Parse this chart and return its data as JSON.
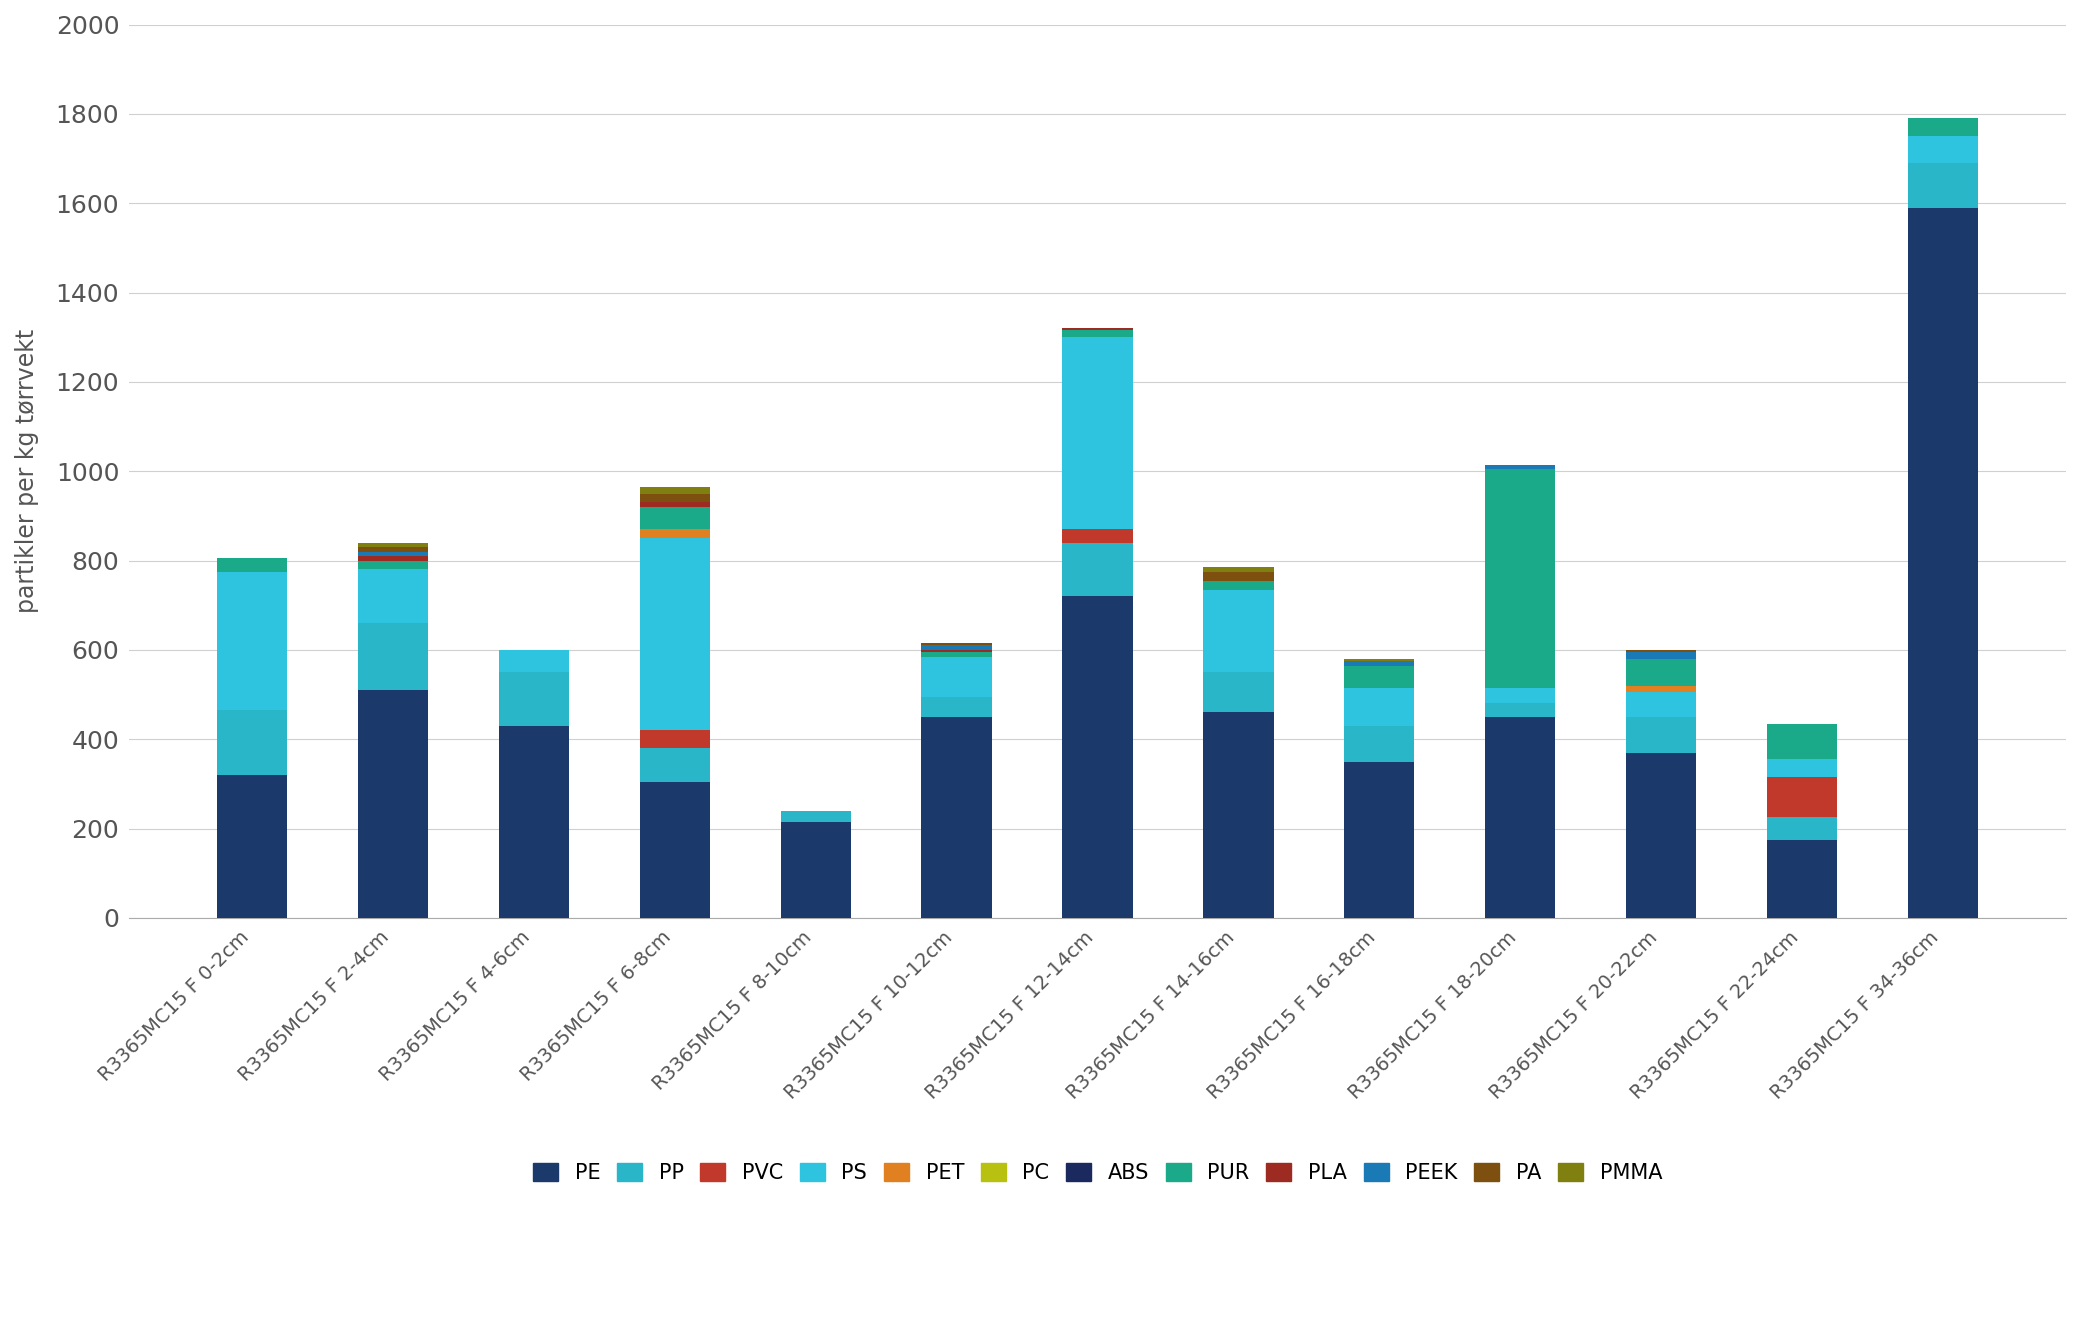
{
  "categories": [
    "R3365MC15 F 0-2cm",
    "R3365MC15 F 2-4cm",
    "R3365MC15 F 4-6cm",
    "R3365MC15 F 6-8cm",
    "R3365MC15 F 8-10cm",
    "R3365MC15 F 10-12cm",
    "R3365MC15 F 12-14cm",
    "R3365MC15 F 14-16cm",
    "R3365MC15 F 16-18cm",
    "R3365MC15 F 18-20cm",
    "R3365MC15 F 20-22cm",
    "R3365MC15 F 22-24cm",
    "R3365MC15 F 34-36cm"
  ],
  "series": {
    "PE": [
      320,
      510,
      430,
      305,
      215,
      450,
      720,
      460,
      350,
      450,
      370,
      175,
      1590
    ],
    "PP": [
      145,
      150,
      120,
      75,
      25,
      45,
      120,
      90,
      80,
      30,
      80,
      50,
      100
    ],
    "PVC": [
      0,
      0,
      0,
      40,
      0,
      0,
      30,
      0,
      0,
      0,
      0,
      90,
      0
    ],
    "PS": [
      310,
      120,
      50,
      430,
      0,
      90,
      430,
      185,
      85,
      35,
      55,
      40,
      60
    ],
    "PET": [
      0,
      0,
      0,
      20,
      0,
      0,
      0,
      0,
      0,
      0,
      15,
      0,
      0
    ],
    "PC": [
      0,
      0,
      0,
      0,
      0,
      0,
      0,
      0,
      0,
      0,
      0,
      0,
      0
    ],
    "ABS": [
      0,
      0,
      0,
      0,
      0,
      0,
      0,
      0,
      0,
      0,
      0,
      0,
      0
    ],
    "PUR": [
      30,
      20,
      0,
      50,
      0,
      10,
      15,
      20,
      50,
      490,
      60,
      80,
      40
    ],
    "PLA": [
      0,
      10,
      0,
      10,
      0,
      5,
      5,
      0,
      0,
      0,
      0,
      0,
      0
    ],
    "PEEK": [
      0,
      10,
      0,
      0,
      0,
      10,
      0,
      0,
      10,
      10,
      15,
      0,
      0
    ],
    "PA": [
      0,
      10,
      0,
      20,
      0,
      5,
      0,
      20,
      0,
      0,
      5,
      0,
      0
    ],
    "PMMA": [
      0,
      10,
      0,
      15,
      0,
      0,
      0,
      10,
      5,
      0,
      0,
      0,
      0
    ]
  },
  "stack_order": [
    "PE",
    "PP",
    "PVC",
    "PS",
    "PET",
    "PC",
    "ABS",
    "PUR",
    "PLA",
    "PEEK",
    "PA",
    "PMMA"
  ],
  "colors": {
    "PE": "#1b3a6b",
    "PP": "#29b6c8",
    "PVC": "#c0392b",
    "PS": "#2ec4e0",
    "PET": "#e08020",
    "PC": "#b8c010",
    "ABS": "#1b2a5e",
    "PUR": "#1aaa8a",
    "PLA": "#9e2b22",
    "PEEK": "#1a7ab5",
    "PA": "#7d5010",
    "PMMA": "#808010"
  },
  "legend_labels": [
    "PE",
    "PP",
    "PVC",
    "PS",
    "PET",
    "PC",
    "ABS",
    "PUR",
    "PLA",
    "PEEK",
    "PA",
    "PMMA"
  ],
  "legend_colors": [
    "#1b3a6b",
    "#29b6c8",
    "#c0392b",
    "#2ec4e0",
    "#e08020",
    "#b8c010",
    "#1b2a5e",
    "#1aaa8a",
    "#9e2b22",
    "#1a7ab5",
    "#7d5010",
    "#808010"
  ],
  "ylabel": "partikler per kg tørrvekt",
  "ylim": [
    0,
    2000
  ],
  "yticks": [
    0,
    200,
    400,
    600,
    800,
    1000,
    1200,
    1400,
    1600,
    1800,
    2000
  ],
  "background_color": "#ffffff",
  "grid_color": "#d0d0d0"
}
